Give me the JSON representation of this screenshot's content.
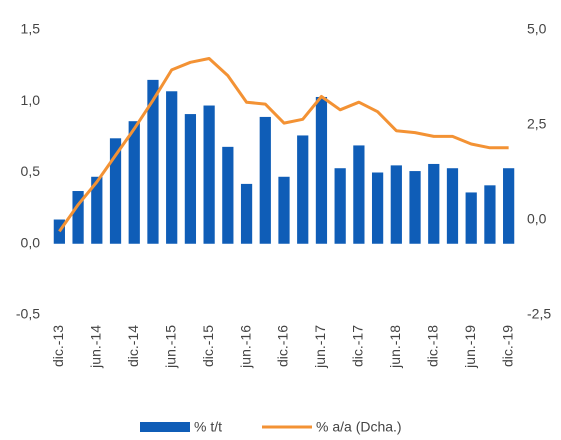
{
  "chart_data": {
    "type": "bar",
    "categories": [
      "dic.-13",
      null,
      "jun.-14",
      null,
      "dic.-14",
      null,
      "jun.-15",
      null,
      "dic.-15",
      null,
      "jun.-16",
      null,
      "dic.-16",
      null,
      "jun.-17",
      null,
      "dic.-17",
      null,
      "jun.-18",
      null,
      "dic.-18",
      null,
      "jun.-19",
      null,
      "dic.-19"
    ],
    "series": [
      {
        "name": "% t/t",
        "type": "bar",
        "color": "#0f5db7",
        "values": [
          0.17,
          0.37,
          0.47,
          0.74,
          0.86,
          1.15,
          1.07,
          0.91,
          0.97,
          0.68,
          0.42,
          0.89,
          0.47,
          0.76,
          1.03,
          0.53,
          0.69,
          0.5,
          0.55,
          0.51,
          0.56,
          0.53,
          0.36,
          0.41,
          0.53
        ]
      },
      {
        "name": "% a/a (Dcha.)",
        "type": "line",
        "axis": "y2",
        "color": "#f39234",
        "values": [
          -0.3,
          0.4,
          1.0,
          1.7,
          2.4,
          3.15,
          3.95,
          4.15,
          4.25,
          3.8,
          3.1,
          3.05,
          2.55,
          2.65,
          3.25,
          2.9,
          3.1,
          2.85,
          2.35,
          2.3,
          2.2,
          2.2,
          2.0,
          1.9,
          1.9
        ]
      }
    ],
    "ylim": [
      -0.5,
      1.5
    ],
    "yticks": [
      {
        "value": -0.5,
        "label": "-0,5"
      },
      {
        "value": 0,
        "label": "0,0"
      },
      {
        "value": 0.5,
        "label": "0,5"
      },
      {
        "value": 1.0,
        "label": "1,0"
      },
      {
        "value": 1.5,
        "label": "1,5"
      }
    ],
    "y2lim": [
      -2.5,
      5.0
    ],
    "y2ticks": [
      {
        "value": -2.5,
        "label": "-2,5"
      },
      {
        "value": 0,
        "label": "0,0"
      },
      {
        "value": 2.5,
        "label": "2,5"
      },
      {
        "value": 5.0,
        "label": "5,0"
      }
    ],
    "grid": false
  }
}
